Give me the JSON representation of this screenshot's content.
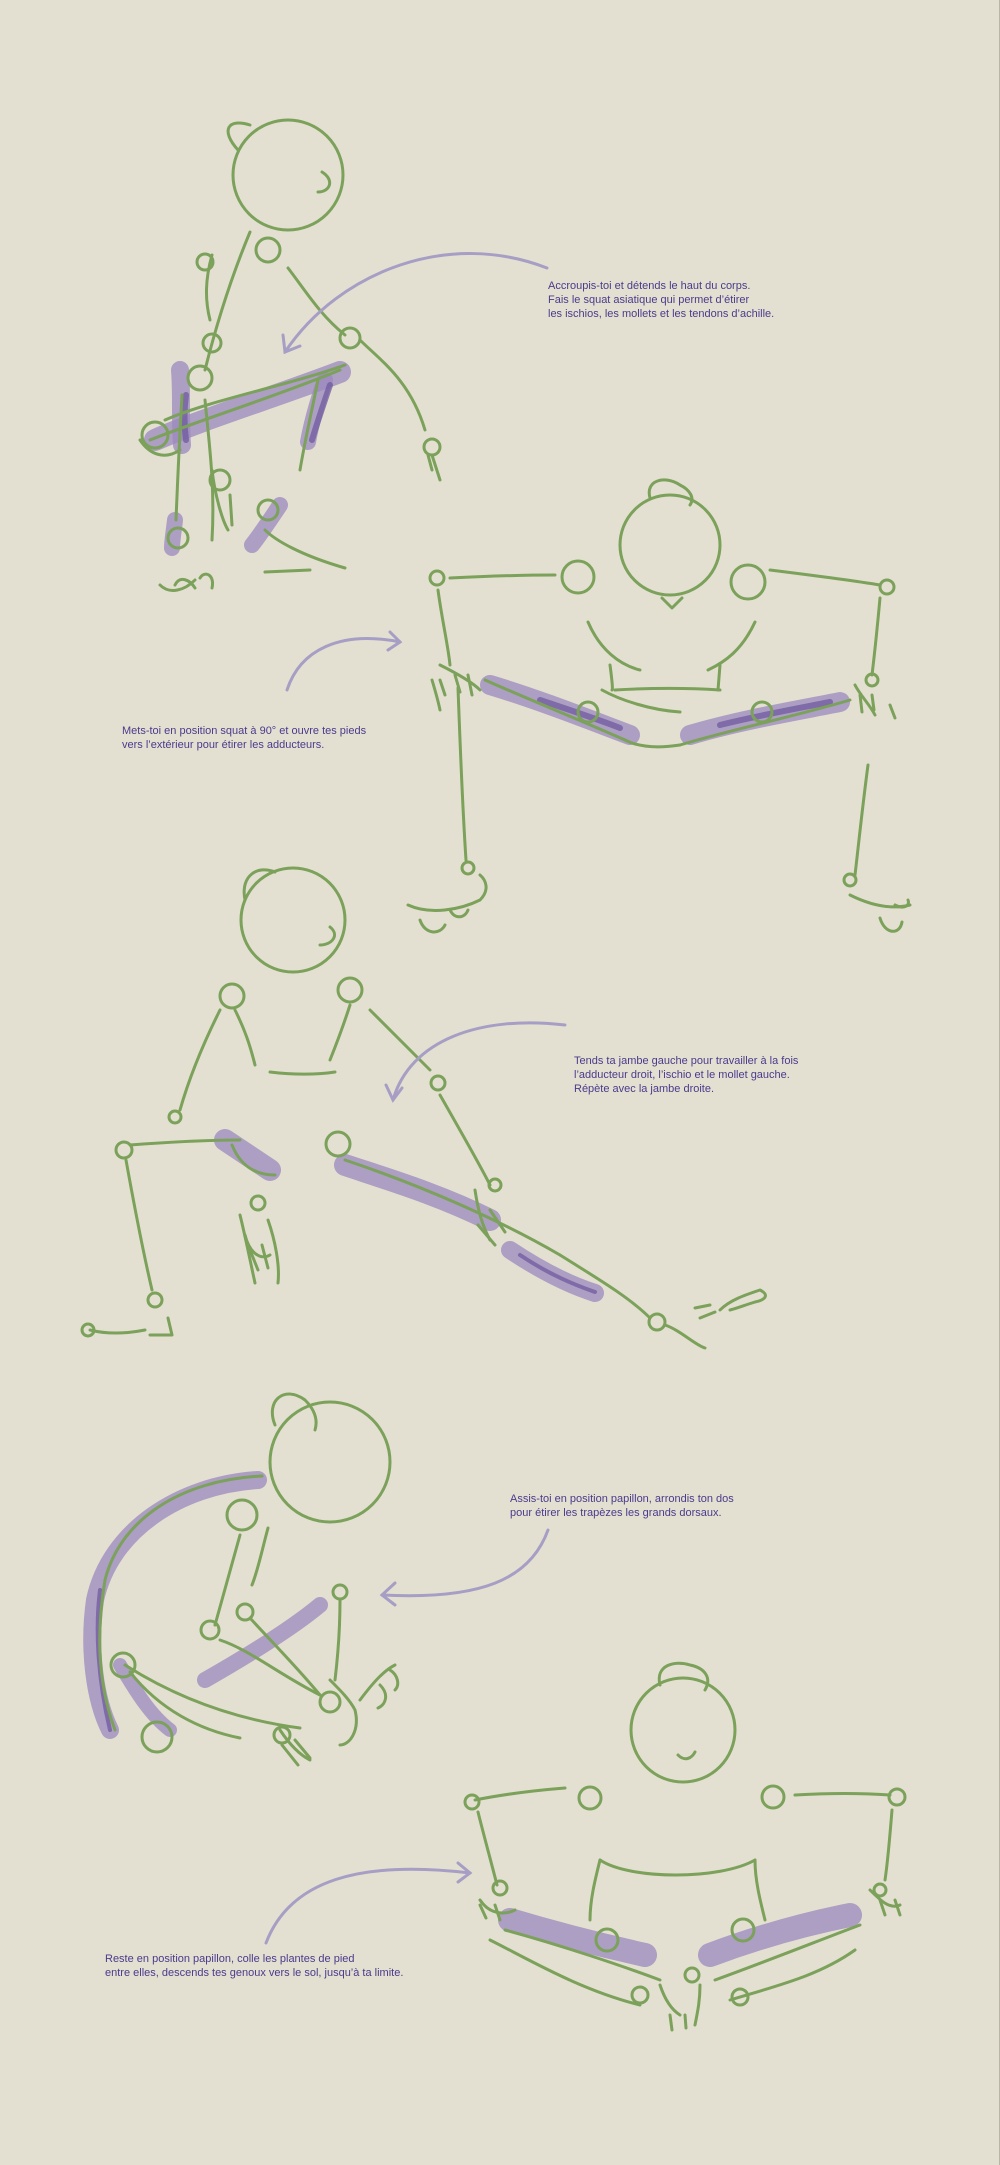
{
  "page": {
    "background": "#e3e0d1",
    "figure_color": "#7ba15a",
    "muscle_color": "#9b88bd",
    "text_color": "#4b3a8c"
  },
  "captions": {
    "c1": {
      "l1": "Accroupis-toi et détends le haut du corps.",
      "l2": "Fais le squat asiatique qui permet d’étirer",
      "l3": "les ischios, les mollets et les tendons d’achille."
    },
    "c2": {
      "l1": "Mets-toi en position squat à 90° et ouvre tes pieds",
      "l2": "vers l’extérieur pour étirer les adducteurs."
    },
    "c3": {
      "l1": "Tends ta jambe gauche pour travailler à la fois",
      "l2": "l’adducteur droit, l’ischio et le mollet gauche.",
      "l3": "Répète avec la jambe droite."
    },
    "c4": {
      "l1": "Assis-toi en position papillon, arrondis ton dos",
      "l2": "pour étirer les trapèzes les grands dorsaux."
    },
    "c5": {
      "l1": "Reste en position papillon, colle les plantes de pied",
      "l2": "entre elles, descends tes genoux vers le sol, jusqu’à ta limite."
    }
  }
}
